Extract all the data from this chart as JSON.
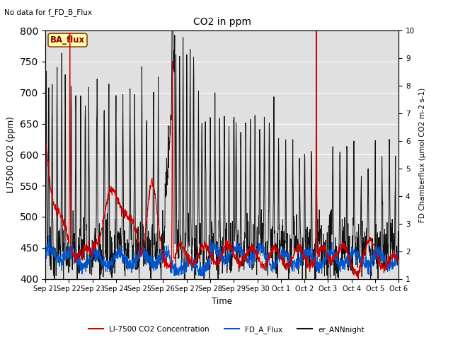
{
  "title": "CO2 in ppm",
  "top_left_text": "No data for f_FD_B_Flux",
  "ba_flux_label": "BA_flux",
  "ylabel_left": "LI7500 CO2 (ppm)",
  "ylabel_right": "FD Chamberflux (μmol CO2 m-2 s-1)",
  "xlabel": "Time",
  "ylim_left": [
    400,
    800
  ],
  "ylim_right": [
    1.0,
    10.0
  ],
  "bg_color": "#e0e0e0",
  "legend_entries": [
    "LI-7500 CO2 Concentration",
    "FD_A_Flux",
    "er_ANNnight"
  ],
  "legend_colors": [
    "#cc0000",
    "#0000cc",
    "#111111"
  ],
  "x_tick_labels": [
    "Sep 21",
    "Sep 22",
    "Sep 23",
    "Sep 24",
    "Sep 25",
    "Sep 26",
    "Sep 27",
    "Sep 28",
    "Sep 29",
    "Sep 30",
    "Oct 1",
    "Oct 2",
    "Oct 3",
    "Oct 4",
    "Oct 5",
    "Oct 6"
  ],
  "n_days": 15,
  "seed": 42
}
